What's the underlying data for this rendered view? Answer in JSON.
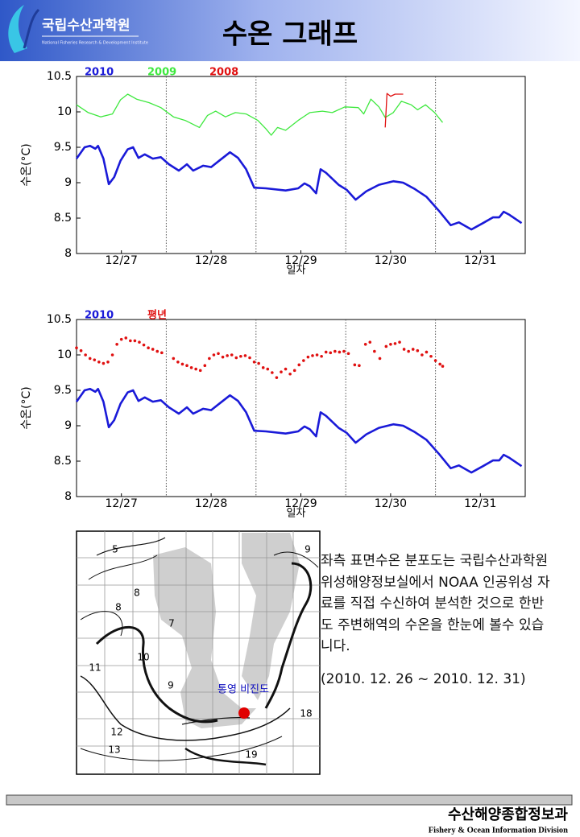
{
  "header": {
    "logo": "국립수산과학원",
    "logo_sub": "National Fisheries Research & Development Institute",
    "title": "수온 그래프"
  },
  "chart_data": [
    {
      "type": "line",
      "xlabel": "일자",
      "ylabel": "수온(°C)",
      "xlim": [
        0,
        5
      ],
      "ylim": [
        8,
        10.5
      ],
      "xticks": [
        {
          "value": 0.5,
          "label": "12/27"
        },
        {
          "value": 1.5,
          "label": "12/28"
        },
        {
          "value": 2.5,
          "label": "12/29"
        },
        {
          "value": 3.5,
          "label": "12/30"
        },
        {
          "value": 4.5,
          "label": "12/31"
        }
      ],
      "yticks": [
        8,
        8.5,
        9,
        9.5,
        10,
        10.5
      ],
      "grid": true,
      "series": [
        {
          "name": "2010",
          "color": "#1a1ad8",
          "style": "line",
          "x": [
            0,
            0.09,
            0.15,
            0.21,
            0.24,
            0.3,
            0.36,
            0.42,
            0.49,
            0.57,
            0.63,
            0.69,
            0.76,
            0.85,
            0.94,
            1.03,
            1.14,
            1.23,
            1.3,
            1.41,
            1.5,
            1.59,
            1.71,
            1.8,
            1.89,
            1.98,
            2.11,
            2.33,
            2.47,
            2.54,
            2.6,
            2.67,
            2.72,
            2.78,
            2.92,
            3.01,
            3.11,
            3.23,
            3.37,
            3.53,
            3.64,
            3.77,
            3.9,
            4.04,
            4.17,
            4.26,
            4.4,
            4.53,
            4.64,
            4.71,
            4.76,
            4.82,
            4.96
          ],
          "values": [
            9.34,
            9.5,
            9.52,
            9.48,
            9.52,
            9.34,
            8.98,
            9.08,
            9.31,
            9.47,
            9.5,
            9.35,
            9.4,
            9.34,
            9.36,
            9.26,
            9.17,
            9.26,
            9.17,
            9.24,
            9.22,
            9.31,
            9.43,
            9.35,
            9.19,
            8.93,
            8.92,
            8.89,
            8.92,
            8.99,
            8.95,
            8.85,
            9.19,
            9.14,
            8.97,
            8.9,
            8.76,
            8.88,
            8.97,
            9.02,
            9.0,
            8.91,
            8.8,
            8.6,
            8.4,
            8.44,
            8.34,
            8.43,
            8.51,
            8.51,
            8.59,
            8.55,
            8.43
          ]
        },
        {
          "name": "2009",
          "color": "#3ee83e",
          "style": "line",
          "x": [
            0,
            0.13,
            0.27,
            0.4,
            0.49,
            0.57,
            0.67,
            0.81,
            0.94,
            1.08,
            1.21,
            1.37,
            1.46,
            1.55,
            1.66,
            1.77,
            1.89,
            2.02,
            2.11,
            2.17,
            2.24,
            2.33,
            2.47,
            2.6,
            2.74,
            2.85,
            2.99,
            3.14,
            3.2,
            3.28,
            3.37,
            3.44,
            3.53,
            3.62,
            3.73,
            3.8,
            3.89,
            3.99,
            4.08
          ],
          "values": [
            10.1,
            9.99,
            9.93,
            9.97,
            10.17,
            10.25,
            10.18,
            10.13,
            10.06,
            9.93,
            9.88,
            9.78,
            9.95,
            10.01,
            9.93,
            9.99,
            9.97,
            9.88,
            9.76,
            9.67,
            9.78,
            9.74,
            9.88,
            9.99,
            10.01,
            9.99,
            10.07,
            10.06,
            9.97,
            10.18,
            10.07,
            9.92,
            9.99,
            10.15,
            10.1,
            10.03,
            10.1,
            9.99,
            9.85
          ]
        },
        {
          "name": "2008",
          "color": "#e01010",
          "style": "line",
          "x": [
            3.44,
            3.46,
            3.5,
            3.55,
            3.64
          ],
          "values": [
            9.78,
            10.26,
            10.22,
            10.25,
            10.25
          ]
        }
      ]
    },
    {
      "type": "line",
      "xlabel": "일자",
      "ylabel": "수온(°C)",
      "xlim": [
        0,
        5
      ],
      "ylim": [
        8,
        10.5
      ],
      "xticks": [
        {
          "value": 0.5,
          "label": "12/27"
        },
        {
          "value": 1.5,
          "label": "12/28"
        },
        {
          "value": 2.5,
          "label": "12/29"
        },
        {
          "value": 3.5,
          "label": "12/30"
        },
        {
          "value": 4.5,
          "label": "12/31"
        }
      ],
      "yticks": [
        8,
        8.5,
        9,
        9.5,
        10,
        10.5
      ],
      "grid": true,
      "series": [
        {
          "name": "2010",
          "color": "#1a1ad8",
          "style": "line",
          "x": [
            0,
            0.09,
            0.15,
            0.21,
            0.24,
            0.3,
            0.36,
            0.42,
            0.49,
            0.57,
            0.63,
            0.69,
            0.76,
            0.85,
            0.94,
            1.03,
            1.14,
            1.23,
            1.3,
            1.41,
            1.5,
            1.59,
            1.71,
            1.8,
            1.89,
            1.98,
            2.11,
            2.33,
            2.47,
            2.54,
            2.6,
            2.67,
            2.72,
            2.78,
            2.92,
            3.01,
            3.11,
            3.23,
            3.37,
            3.53,
            3.64,
            3.77,
            3.9,
            4.04,
            4.17,
            4.26,
            4.4,
            4.53,
            4.64,
            4.71,
            4.76,
            4.82,
            4.96
          ],
          "values": [
            9.34,
            9.5,
            9.52,
            9.48,
            9.52,
            9.34,
            8.98,
            9.08,
            9.31,
            9.47,
            9.5,
            9.35,
            9.4,
            9.34,
            9.36,
            9.26,
            9.17,
            9.26,
            9.17,
            9.24,
            9.22,
            9.31,
            9.43,
            9.35,
            9.19,
            8.93,
            8.92,
            8.89,
            8.92,
            8.99,
            8.95,
            8.85,
            9.19,
            9.14,
            8.97,
            8.9,
            8.76,
            8.88,
            8.97,
            9.02,
            9.0,
            8.91,
            8.8,
            8.6,
            8.4,
            8.44,
            8.34,
            8.43,
            8.51,
            8.51,
            8.59,
            8.55,
            8.43
          ]
        },
        {
          "name": "평년",
          "color": "#e01010",
          "style": "dots",
          "x": [
            0,
            0.05,
            0.1,
            0.15,
            0.2,
            0.25,
            0.3,
            0.35,
            0.4,
            0.45,
            0.5,
            0.55,
            0.6,
            0.65,
            0.7,
            0.75,
            0.8,
            0.85,
            0.9,
            0.95,
            1.08,
            1.13,
            1.18,
            1.23,
            1.28,
            1.33,
            1.38,
            1.43,
            1.48,
            1.53,
            1.58,
            1.63,
            1.68,
            1.73,
            1.78,
            1.83,
            1.88,
            1.93,
            1.98,
            2.03,
            2.08,
            2.13,
            2.18,
            2.23,
            2.28,
            2.33,
            2.38,
            2.43,
            2.48,
            2.53,
            2.58,
            2.63,
            2.68,
            2.73,
            2.78,
            2.83,
            2.88,
            2.93,
            2.98,
            3.03,
            3.1,
            3.15,
            3.22,
            3.27,
            3.32,
            3.38,
            3.45,
            3.5,
            3.55,
            3.6,
            3.65,
            3.7,
            3.75,
            3.8,
            3.85,
            3.9,
            3.95,
            4.0,
            4.05,
            4.08
          ],
          "values": [
            10.1,
            10.06,
            10.0,
            9.95,
            9.93,
            9.9,
            9.88,
            9.9,
            10.0,
            10.15,
            10.22,
            10.24,
            10.2,
            10.2,
            10.18,
            10.14,
            10.1,
            10.08,
            10.05,
            10.03,
            9.95,
            9.9,
            9.87,
            9.85,
            9.82,
            9.8,
            9.78,
            9.85,
            9.95,
            10.0,
            10.02,
            9.97,
            9.99,
            10.0,
            9.96,
            9.98,
            9.99,
            9.96,
            9.9,
            9.88,
            9.82,
            9.8,
            9.75,
            9.68,
            9.76,
            9.8,
            9.73,
            9.78,
            9.86,
            9.92,
            9.97,
            9.99,
            10.0,
            9.98,
            10.04,
            10.03,
            10.05,
            10.04,
            10.05,
            10.02,
            9.86,
            9.85,
            10.15,
            10.18,
            10.05,
            9.95,
            10.12,
            10.15,
            10.16,
            10.18,
            10.08,
            10.05,
            10.08,
            10.06,
            10.0,
            10.04,
            9.98,
            9.92,
            9.87,
            9.84
          ]
        }
      ]
    }
  ],
  "map": {
    "labels": [
      "5",
      "8",
      "8",
      "7",
      "10",
      "9",
      "11",
      "12",
      "13",
      "19",
      "18",
      "9"
    ],
    "station": "통영 비진도"
  },
  "description": {
    "text": "좌측 표면수온 분포도는 국립수산과학원 위성해양정보실에서 NOAA 인공위성 자료를 직접 수신하여 분석한 것으로 한반도 주변해역의 수온을 한눈에 볼수 있습니다.",
    "period": "(2010. 12. 26 ~ 2010. 12. 31)"
  },
  "footer": {
    "org": "수산해양종합정보과",
    "org_en": "Fishery & Ocean Information Division"
  }
}
